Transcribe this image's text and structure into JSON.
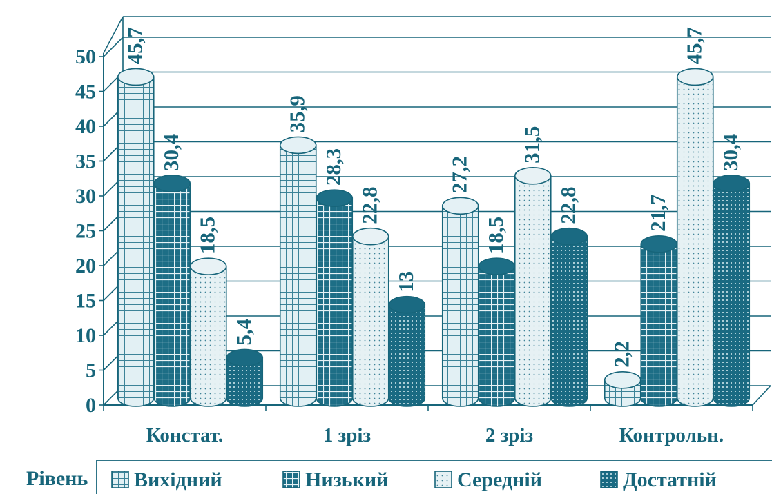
{
  "chart_data": {
    "type": "bar",
    "categories": [
      "Констат.",
      "1 зріз",
      "2 зріз",
      "Контрольн."
    ],
    "series": [
      {
        "name": "Вихідний",
        "values": [
          45.7,
          35.9,
          27.2,
          2.2
        ]
      },
      {
        "name": "Низький",
        "values": [
          30.4,
          28.3,
          18.5,
          21.7
        ]
      },
      {
        "name": "Середній",
        "values": [
          18.5,
          22.8,
          31.5,
          45.7
        ]
      },
      {
        "name": "Достатній",
        "values": [
          5.4,
          13,
          22.8,
          30.4
        ]
      }
    ],
    "data_labels": [
      [
        "45,7",
        "35,9",
        "27,2",
        "2,2"
      ],
      [
        "30,4",
        "28,3",
        "18,5",
        "21,7"
      ],
      [
        "18,5",
        "22,8",
        "31,5",
        "45,7"
      ],
      [
        "5,4",
        "13",
        "22,8",
        "30,4"
      ]
    ],
    "y_ticks": [
      "0",
      "5",
      "10",
      "15",
      "20",
      "25",
      "30",
      "35",
      "40",
      "45",
      "50"
    ],
    "ylim": [
      0,
      50
    ],
    "grid": true,
    "legend_title": "Рівень",
    "legend_position": "bottom",
    "colors": {
      "axis": "#17657a",
      "dark_fill": "#1d6e86",
      "light_fill": "#dcecf1",
      "text": "#17657a"
    }
  }
}
